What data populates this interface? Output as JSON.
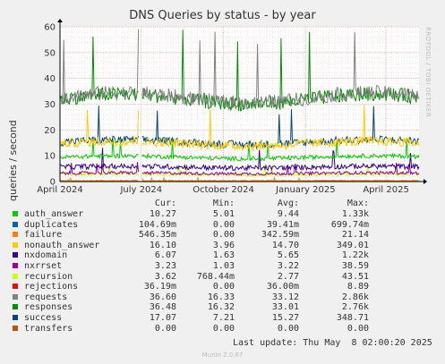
{
  "title": "DNS Queries by status - by year",
  "watermark": "RRDTOOL / TOBI OETIKER",
  "footer": {
    "last_update": "Last update: Thu May  8 02:00:20 2025",
    "munin_version": "Munin 2.0.67"
  },
  "legend": {
    "headers": [
      "Cur:",
      "Min:",
      "Avg:",
      "Max:"
    ],
    "rows": [
      {
        "name": "auth_answer",
        "color": "#00cc00",
        "cur": "10.27",
        "min": "5.01",
        "avg": "9.44",
        "max": "1.33k"
      },
      {
        "name": "duplicates",
        "color": "#0066b3",
        "cur": "104.69m",
        "min": "0.00",
        "avg": "39.41m",
        "max": "699.74m"
      },
      {
        "name": "failure",
        "color": "#ff8000",
        "cur": "546.35m",
        "min": "0.00",
        "avg": "342.59m",
        "max": "21.14"
      },
      {
        "name": "nonauth_answer",
        "color": "#ffcc00",
        "cur": "16.10",
        "min": "3.96",
        "avg": "14.70",
        "max": "349.01"
      },
      {
        "name": "nxdomain",
        "color": "#330099",
        "cur": "6.07",
        "min": "1.63",
        "avg": "5.65",
        "max": "1.22k"
      },
      {
        "name": "nxrrset",
        "color": "#990099",
        "cur": "3.23",
        "min": "1.03",
        "avg": "3.22",
        "max": "38.59"
      },
      {
        "name": "recursion",
        "color": "#ccff00",
        "cur": "3.62",
        "min": "768.44m",
        "avg": "2.77",
        "max": "43.51"
      },
      {
        "name": "rejections",
        "color": "#ff0000",
        "cur": "36.19m",
        "min": "0.00",
        "avg": "36.00m",
        "max": "8.89"
      },
      {
        "name": "requests",
        "color": "#808080",
        "cur": "36.60",
        "min": "16.33",
        "avg": "33.12",
        "max": "2.86k"
      },
      {
        "name": "responses",
        "color": "#008f00",
        "cur": "36.48",
        "min": "16.32",
        "avg": "33.01",
        "max": "2.76k"
      },
      {
        "name": "success",
        "color": "#00487d",
        "cur": "17.07",
        "min": "7.21",
        "avg": "15.27",
        "max": "348.71"
      },
      {
        "name": "transfers",
        "color": "#b35a00",
        "cur": "0.00",
        "min": "0.00",
        "avg": "0.00",
        "max": "0.00"
      }
    ]
  },
  "chart_data": {
    "type": "line",
    "title": "DNS Queries by status - by year",
    "ylabel": "queries / second",
    "ylim": [
      0,
      60
    ],
    "yticks": [
      "0",
      "10",
      "20",
      "30",
      "40",
      "50",
      "60"
    ],
    "xlabels": [
      "April 2024",
      "July 2024",
      "October 2024",
      "January 2025",
      "April 2025"
    ],
    "x_range": [
      "2024-04-01",
      "2025-05-08"
    ],
    "grid": true,
    "gap": [
      "2024-06-28",
      "2024-07-01"
    ],
    "series": [
      {
        "name": "requests",
        "color": "#808080",
        "base": 32.5,
        "noise": 2.8
      },
      {
        "name": "responses",
        "color": "#008f00",
        "base": 32.0,
        "noise": 2.8
      },
      {
        "name": "nonauth_answer",
        "color": "#ffcc00",
        "base": 14.7,
        "noise": 1.8
      },
      {
        "name": "success",
        "color": "#00487d",
        "base": 15.3,
        "noise": 1.5
      },
      {
        "name": "auth_answer",
        "color": "#00cc00",
        "base": 9.4,
        "noise": 0.8
      },
      {
        "name": "nxdomain",
        "color": "#330099",
        "base": 5.6,
        "noise": 1.0
      },
      {
        "name": "nxrrset",
        "color": "#990099",
        "base": 3.2,
        "noise": 0.6
      },
      {
        "name": "recursion",
        "color": "#ccff00",
        "base": 2.8,
        "noise": 0.6
      },
      {
        "name": "failure",
        "color": "#ff8000",
        "base": 0.34,
        "noise": 0.2
      },
      {
        "name": "rejections",
        "color": "#ff0000",
        "base": 0.04,
        "noise": 0.05
      },
      {
        "name": "duplicates",
        "color": "#0066b3",
        "base": 0.04,
        "noise": 0.03
      },
      {
        "name": "transfers",
        "color": "#b35a00",
        "base": 0.0,
        "noise": 0.0
      }
    ]
  }
}
